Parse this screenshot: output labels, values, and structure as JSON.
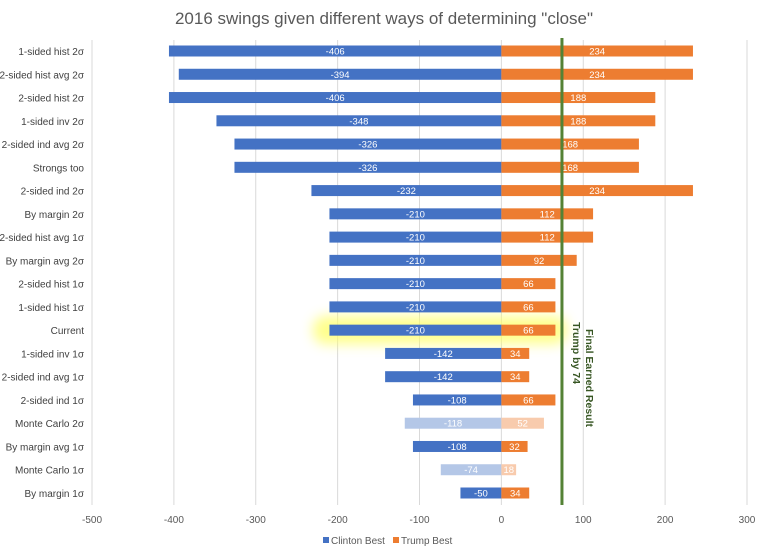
{
  "chart_data": {
    "type": "bar",
    "orientation": "horizontal",
    "stacked": "diverging",
    "title": "2016 swings given different ways of determining \"close\"",
    "xlabel": "",
    "ylabel": "",
    "xlim": [
      -500,
      300
    ],
    "xticks": [
      -500,
      -400,
      -300,
      -200,
      -100,
      0,
      100,
      200,
      300
    ],
    "grid": true,
    "legend_position": "bottom",
    "categories": [
      "1-sided hist 2σ",
      "2-sided hist avg 2σ",
      "2-sided hist 2σ",
      "1-sided inv 2σ",
      "2-sided ind avg 2σ",
      "Strongs too",
      "2-sided ind 2σ",
      "By margin 2σ",
      "2-sided hist avg 1σ",
      "By margin avg 2σ",
      "2-sided hist 1σ",
      "1-sided hist 1σ",
      "Current",
      "1-sided inv 1σ",
      "2-sided ind avg 1σ",
      "2-sided ind 1σ",
      "Monte Carlo 2σ",
      "By margin avg 1σ",
      "Monte Carlo 1σ",
      "By margin 1σ"
    ],
    "series": [
      {
        "name": "Clinton Best",
        "color": "#4472C4",
        "faded_color": "#B4C7E7",
        "values": [
          -406,
          -394,
          -406,
          -348,
          -326,
          -326,
          -232,
          -210,
          -210,
          -210,
          -210,
          -210,
          -210,
          -142,
          -142,
          -108,
          -118,
          -108,
          -74,
          -50
        ]
      },
      {
        "name": "Trump Best",
        "color": "#ED7D31",
        "faded_color": "#F8CBAD",
        "values": [
          234,
          234,
          188,
          188,
          168,
          168,
          234,
          112,
          112,
          92,
          66,
          66,
          66,
          34,
          34,
          66,
          52,
          32,
          18,
          34
        ]
      }
    ],
    "faded_categories": [
      "Monte Carlo 2σ",
      "Monte Carlo 1σ"
    ],
    "highlighted_category": "Current",
    "reference_line": {
      "value": 74,
      "color": "#548235",
      "label_line1": "Final Earned Result",
      "label_line2": "Trump by 74"
    }
  }
}
